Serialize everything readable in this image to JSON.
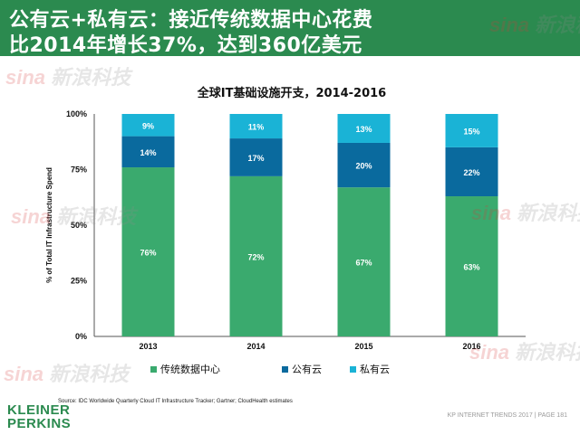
{
  "header": {
    "line1": "公有云+私有云：接近传统数据中心花费",
    "line2": "比2014年增长37%，达到360亿美元"
  },
  "chart_data": {
    "type": "bar",
    "stacked": true,
    "title": "全球IT基础设施开支，2014-2016",
    "ylabel": "% of Total IT Infrastructure Spend",
    "xlabel": "",
    "categories": [
      "2013",
      "2014",
      "2015",
      "2016"
    ],
    "ylim": [
      0,
      100
    ],
    "yticks": [
      "0%",
      "25%",
      "50%",
      "75%",
      "100%"
    ],
    "series": [
      {
        "name": "传统数据中心",
        "color": "#3aaa6e",
        "values": [
          76,
          72,
          67,
          63
        ],
        "labels": [
          "76%",
          "72%",
          "67%",
          "63%"
        ]
      },
      {
        "name": "公有云",
        "color": "#0a6a9e",
        "values": [
          14,
          17,
          20,
          22
        ],
        "labels": [
          "14%",
          "17%",
          "20%",
          "22%"
        ]
      },
      {
        "name": "私有云",
        "color": "#1ab3d6",
        "values": [
          9,
          11,
          13,
          15
        ],
        "labels": [
          "9%",
          "11%",
          "13%",
          "15%"
        ]
      }
    ],
    "legend_position": "bottom",
    "grid": false
  },
  "source": "Source: IDC Worldwide Quarterly Cloud IT Infrastructure Tracker; Gartner; CloudHealth estimates",
  "logo": {
    "line1": "KLEINER",
    "line2": "PERKINS"
  },
  "footer": "KP INTERNET TRENDS 2017  |  PAGE 181",
  "watermark": {
    "brand": "sina",
    "text": "新浪科技"
  }
}
